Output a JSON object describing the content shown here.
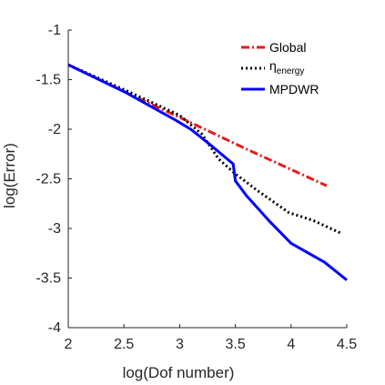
{
  "chart_data": {
    "type": "line",
    "xlabel": "log(Dof number)",
    "ylabel": "log(Error)",
    "xlim": [
      2,
      4.5
    ],
    "ylim": [
      -4,
      -1
    ],
    "xticks": [
      2,
      2.5,
      3,
      3.5,
      4,
      4.5
    ],
    "yticks": [
      -1,
      -1.5,
      -2,
      -2.5,
      -3,
      -3.5,
      -4
    ],
    "xtick_labels": [
      "2",
      "2.5",
      "3",
      "3.5",
      "4",
      "4.5"
    ],
    "ytick_labels": [
      "-1",
      "-1.5",
      "-2",
      "-2.5",
      "-3",
      "-3.5",
      "-4"
    ],
    "grid": false,
    "legend_position": "top-right",
    "series": [
      {
        "name": "Global",
        "color": "#e41a1c",
        "style": "dashdot",
        "points": [
          [
            2.0,
            -1.35
          ],
          [
            2.5,
            -1.62
          ],
          [
            3.0,
            -1.88
          ],
          [
            3.6,
            -2.2
          ],
          [
            4.32,
            -2.57
          ]
        ]
      },
      {
        "name": "η",
        "name_subscript": "energy",
        "color": "#000000",
        "style": "dotted",
        "points": [
          [
            2.0,
            -1.35
          ],
          [
            2.5,
            -1.6
          ],
          [
            3.0,
            -1.86
          ],
          [
            3.2,
            -2.05
          ],
          [
            3.35,
            -2.3
          ],
          [
            3.5,
            -2.45
          ],
          [
            3.7,
            -2.62
          ],
          [
            3.98,
            -2.84
          ],
          [
            4.2,
            -2.92
          ],
          [
            4.45,
            -3.05
          ]
        ]
      },
      {
        "name": "MPDWR",
        "color": "#0000ff",
        "style": "solid",
        "points": [
          [
            2.0,
            -1.35
          ],
          [
            2.5,
            -1.62
          ],
          [
            2.95,
            -1.9
          ],
          [
            3.1,
            -2.0
          ],
          [
            3.3,
            -2.18
          ],
          [
            3.48,
            -2.35
          ],
          [
            3.5,
            -2.52
          ],
          [
            3.6,
            -2.67
          ],
          [
            3.8,
            -2.92
          ],
          [
            4.0,
            -3.15
          ],
          [
            4.3,
            -3.34
          ],
          [
            4.5,
            -3.52
          ]
        ]
      }
    ]
  }
}
